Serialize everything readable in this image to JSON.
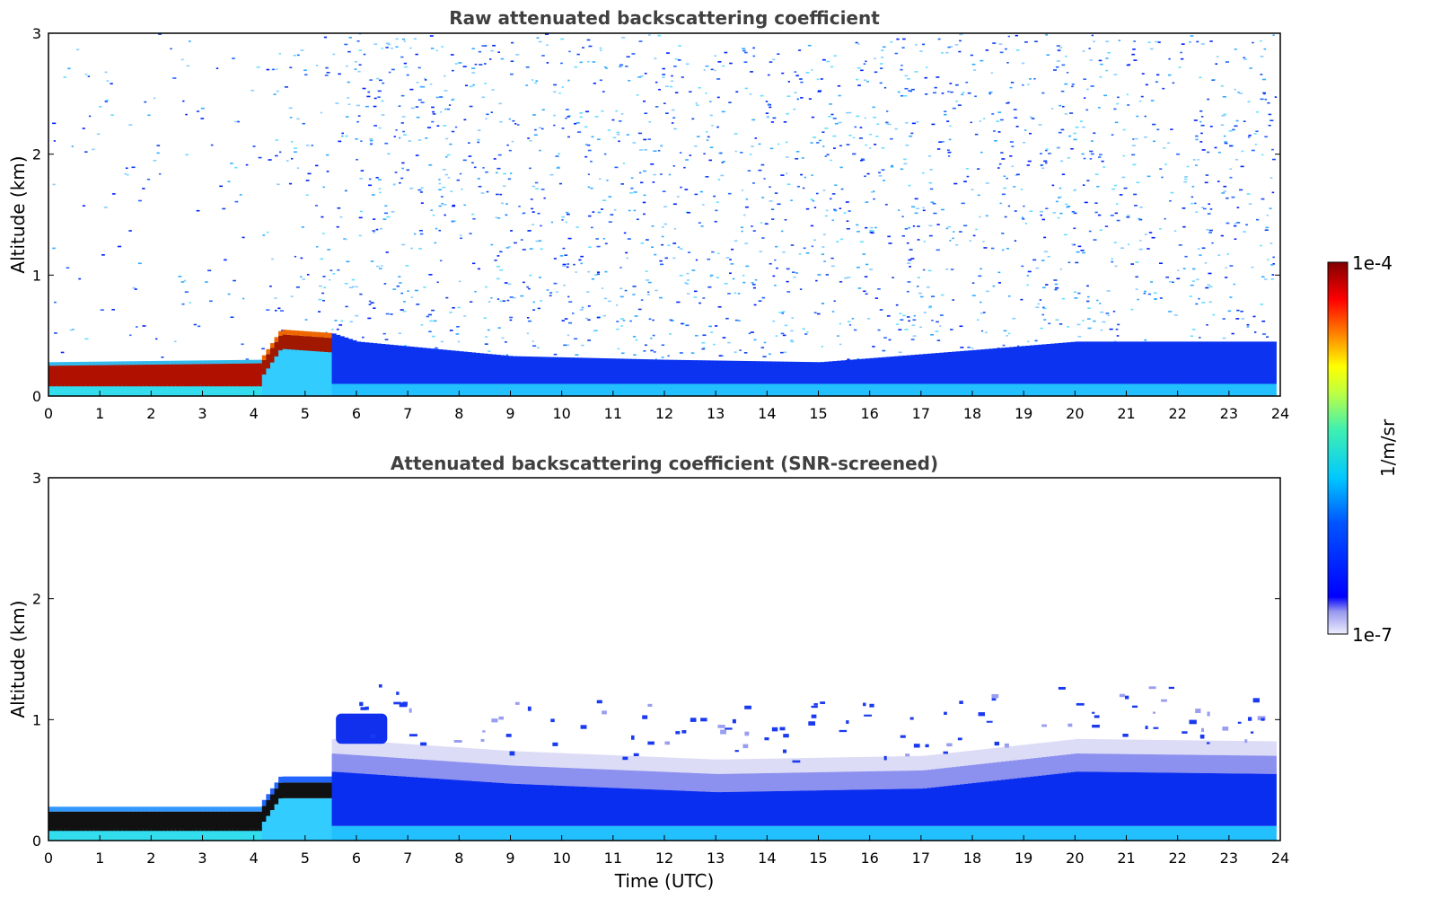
{
  "chart_data": [
    {
      "type": "heatmap",
      "title": "Raw attenuated backscattering coefficient",
      "xlabel": "",
      "ylabel": "Altitude (km)",
      "xlim": [
        0,
        24
      ],
      "ylim": [
        0,
        3
      ],
      "x_ticks": [
        0,
        1,
        2,
        3,
        4,
        5,
        6,
        7,
        8,
        9,
        10,
        11,
        12,
        13,
        14,
        15,
        16,
        17,
        18,
        19,
        20,
        21,
        22,
        23,
        24
      ],
      "y_ticks": [
        0,
        1,
        2,
        3
      ],
      "features": {
        "dense_layer_top_km": [
          {
            "t": 0,
            "top": 0.28
          },
          {
            "t": 4.1,
            "top": 0.3
          },
          {
            "t": 4.5,
            "top": 0.55
          },
          {
            "t": 5.5,
            "top": 0.52
          },
          {
            "t": 6,
            "top": 0.45
          },
          {
            "t": 9,
            "top": 0.33
          },
          {
            "t": 12,
            "top": 0.3
          },
          {
            "t": 15,
            "top": 0.28
          },
          {
            "t": 18,
            "top": 0.38
          },
          {
            "t": 20,
            "top": 0.45
          },
          {
            "t": 24,
            "top": 0.45
          }
        ],
        "noise_onset_utc": 5.5
      }
    },
    {
      "type": "heatmap",
      "title": "Attenuated backscattering coefficient (SNR-screened)",
      "xlabel": "Time (UTC)",
      "ylabel": "Altitude (km)",
      "xlim": [
        0,
        24
      ],
      "ylim": [
        0,
        3
      ],
      "x_ticks": [
        0,
        1,
        2,
        3,
        4,
        5,
        6,
        7,
        8,
        9,
        10,
        11,
        12,
        13,
        14,
        15,
        16,
        17,
        18,
        19,
        20,
        21,
        22,
        23,
        24
      ],
      "y_ticks": [
        0,
        1,
        2,
        3
      ],
      "features": {
        "aerosol_layer_top_km": [
          {
            "t": 5.5,
            "top": 0.72
          },
          {
            "t": 9,
            "top": 0.62
          },
          {
            "t": 13,
            "top": 0.55
          },
          {
            "t": 17,
            "top": 0.58
          },
          {
            "t": 20,
            "top": 0.72
          },
          {
            "t": 24,
            "top": 0.7
          }
        ],
        "cloud_patch_km": [
          0.8,
          1.05
        ],
        "cloud_patch_utc": [
          5.6,
          6.6
        ]
      }
    }
  ],
  "colorbar": {
    "label": "1/m/sr",
    "max_label": "1e-4",
    "min_label": "1e-7",
    "scale": "log",
    "colormap": "jet"
  }
}
